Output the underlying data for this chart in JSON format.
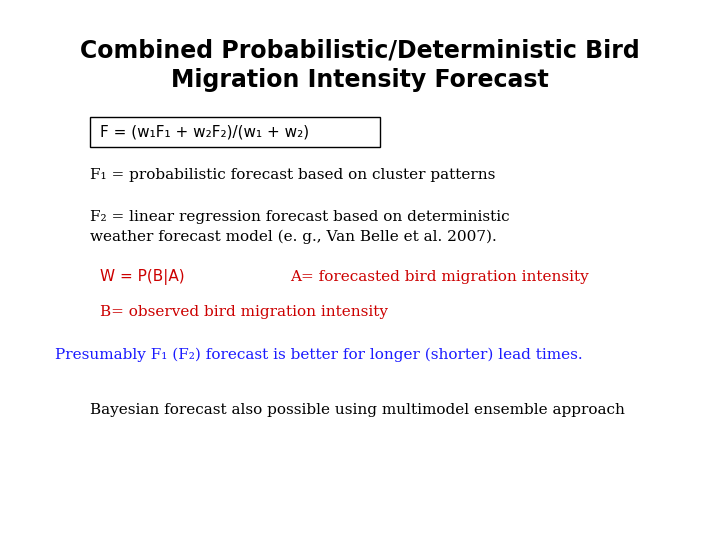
{
  "title_line1": "Combined Probabilistic/Deterministic Bird",
  "title_line2": "Migration Intensity Forecast",
  "formula": "F = (w₁F₁ + w₂F₂)/(w₁ + w₂)",
  "f1_text": "F₁ = probabilistic forecast based on cluster patterns",
  "f2_line1": "F₂ = linear regression forecast based on deterministic",
  "f2_line2": "weather forecast model (e. g., Van Belle et al. 2007).",
  "w_text": "W = P(B|A)",
  "a_text": "A= forecasted bird migration intensity",
  "b_text": "B= observed bird migration intensity",
  "presumably_text": "Presumably F₁ (F₂) forecast is better for longer (shorter) lead times.",
  "bayesian_text": "Bayesian forecast also possible using multimodel ensemble approach",
  "bg_color": "#ffffff",
  "title_color": "#000000",
  "body_color": "#000000",
  "red_color": "#cc0000",
  "blue_color": "#1a1aff",
  "formula_box_color": "#000000",
  "title_fontsize": 17,
  "body_fontsize": 11,
  "formula_fontsize": 11
}
